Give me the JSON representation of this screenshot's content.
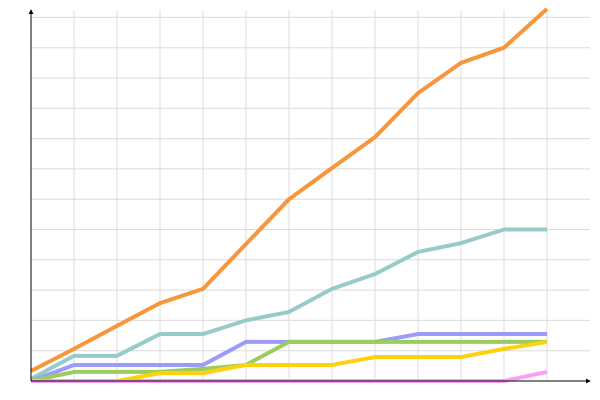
{
  "chart_data": {
    "type": "line",
    "categories": [
      null,
      null,
      null,
      null,
      null,
      null,
      null,
      null,
      null,
      null,
      null,
      null,
      null
    ],
    "series": [
      {
        "color": "#f7963a",
        "values": [
          0.33,
          1.06,
          1.82,
          2.57,
          3.04,
          4.52,
          6.0,
          7.03,
          8.05,
          9.5,
          10.5,
          11.0,
          12.28
        ]
      },
      {
        "color": "#97cbc8",
        "values": [
          0.07,
          0.83,
          0.83,
          1.55,
          1.55,
          2.0,
          2.28,
          3.04,
          3.53,
          4.26,
          4.55,
          5.0,
          5.0
        ]
      },
      {
        "color": "#9b9bfa",
        "values": [
          0,
          0.53,
          0.53,
          0.53,
          0.53,
          1.29,
          1.29,
          1.29,
          1.29,
          1.55,
          1.55,
          1.55,
          1.55
        ]
      },
      {
        "color": "#9ccc5e",
        "values": [
          0,
          0.3,
          0.3,
          0.3,
          0.4,
          0.53,
          1.29,
          1.29,
          1.29,
          1.29,
          1.29,
          1.29,
          1.29
        ]
      },
      {
        "color": "#fcd20c",
        "values": [
          0,
          0,
          0,
          0.26,
          0.26,
          0.53,
          0.53,
          0.53,
          0.79,
          0.79,
          0.79,
          1.06,
          1.29
        ]
      },
      {
        "color": "#f9a0f4",
        "values": [
          0,
          0,
          0,
          0,
          0,
          0,
          0,
          0,
          0,
          0,
          0,
          0,
          0.3
        ]
      }
    ],
    "ylim": [
      0,
      12.3
    ],
    "yticks": [
      1,
      2,
      3,
      4,
      5,
      6,
      7,
      8,
      9,
      10,
      11,
      12
    ],
    "grid": true
  }
}
